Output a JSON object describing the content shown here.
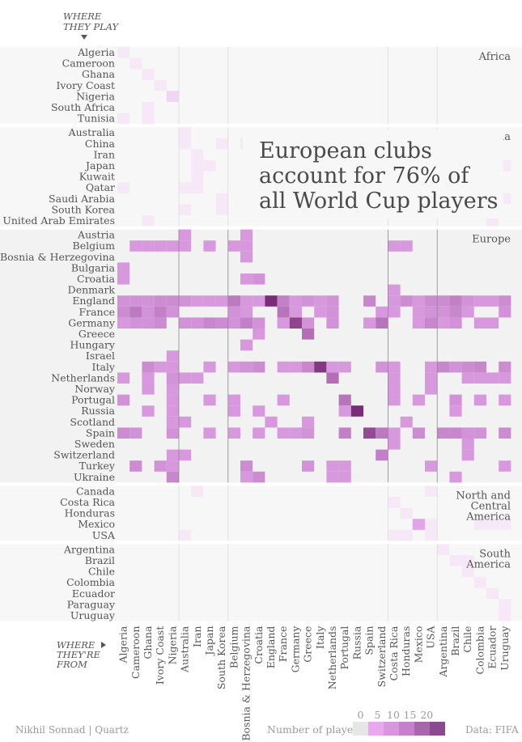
{
  "chart_data": {
    "type": "heatmap",
    "title": "European clubs account for 76% of all World Cup players",
    "y_axis_heading": [
      "WHERE",
      "THEY PLAY"
    ],
    "x_axis_heading": [
      "WHERE",
      "THEY'RE",
      "FROM"
    ],
    "color_low": "#f6e6f8",
    "color_high": "#7a2c78",
    "background_color": "#f2f2f2",
    "club_groups": [
      {
        "name": "Africa",
        "label_lines": [
          "Africa"
        ],
        "countries": [
          "Algeria",
          "Cameroon",
          "Ghana",
          "Ivory Coast",
          "Nigeria",
          "South Africa",
          "Tunisia"
        ]
      },
      {
        "name": "Asia",
        "label_lines": [
          "Asia"
        ],
        "countries": [
          "Australia",
          "China",
          "Iran",
          "Japan",
          "Kuwait",
          "Qatar",
          "Saudi Arabia",
          "South Korea",
          "United Arab Emirates"
        ]
      },
      {
        "name": "Europe",
        "label_lines": [
          "Europe"
        ],
        "countries": [
          "Austria",
          "Belgium",
          "Bosnia & Herzegovina",
          "Bulgaria",
          "Croatia",
          "Denmark",
          "England",
          "France",
          "Germany",
          "Greece",
          "Hungary",
          "Israel",
          "Italy",
          "Netherlands",
          "Norway",
          "Portugal",
          "Russia",
          "Scotland",
          "Spain",
          "Sweden",
          "Switzerland",
          "Turkey",
          "Ukraine"
        ]
      },
      {
        "name": "North and Central America",
        "label_lines": [
          "North and",
          "Central",
          "America"
        ],
        "countries": [
          "Canada",
          "Costa Rica",
          "Honduras",
          "Mexico",
          "USA"
        ]
      },
      {
        "name": "South America",
        "label_lines": [
          "South",
          "America"
        ],
        "countries": [
          "Argentina",
          "Brazil",
          "Chile",
          "Colombia",
          "Ecuador",
          "Paraguay",
          "Uruguay"
        ]
      }
    ],
    "team_groups": [
      [
        "Algeria",
        "Cameroon",
        "Ghana",
        "Ivory Coast",
        "Nigeria"
      ],
      [
        "Australia",
        "Iran",
        "Japan",
        "South Korea"
      ],
      [
        "Belgium",
        "Bosnia & Herzegovina",
        "Croatia",
        "England",
        "France",
        "Germany",
        "Greece",
        "Italy",
        "Netherlands",
        "Portugal",
        "Russia",
        "Spain",
        "Switzerland"
      ],
      [
        "Costa Rica",
        "Honduras",
        "Mexico",
        "USA"
      ],
      [
        "Argentina",
        "Brazil",
        "Chile",
        "Colombia",
        "Ecuador",
        "Uruguay"
      ]
    ],
    "cells": [
      [
        "Algeria",
        "Algeria",
        1
      ],
      [
        "Cameroon",
        "Cameroon",
        1
      ],
      [
        "Ghana",
        "Ghana",
        1
      ],
      [
        "Ivory Coast",
        "Ivory Coast",
        1
      ],
      [
        "Nigeria",
        "Nigeria",
        2
      ],
      [
        "South Africa",
        "Ghana",
        1
      ],
      [
        "Tunisia",
        "Algeria",
        1
      ],
      [
        "Tunisia",
        "Ghana",
        1
      ],
      [
        "Australia",
        "Australia",
        1
      ],
      [
        "China",
        "Australia",
        1
      ],
      [
        "China",
        "South Korea",
        1
      ],
      [
        "China",
        "Bosnia & Herzegovina",
        1
      ],
      [
        "Iran",
        "Iran",
        1
      ],
      [
        "Japan",
        "Iran",
        1
      ],
      [
        "Japan",
        "Japan",
        1
      ],
      [
        "Japan",
        "Uruguay",
        1
      ],
      [
        "Kuwait",
        "Iran",
        1
      ],
      [
        "Qatar",
        "Algeria",
        1
      ],
      [
        "Qatar",
        "Australia",
        1
      ],
      [
        "Qatar",
        "Iran",
        1
      ],
      [
        "Saudi Arabia",
        "South Korea",
        1
      ],
      [
        "Saudi Arabia",
        "Uruguay",
        1
      ],
      [
        "South Korea",
        "Australia",
        1
      ],
      [
        "South Korea",
        "South Korea",
        1
      ],
      [
        "United Arab Emirates",
        "Ghana",
        1
      ],
      [
        "United Arab Emirates",
        "Ecuador",
        1
      ],
      [
        "Austria",
        "Australia",
        5
      ],
      [
        "Austria",
        "Bosnia & Herzegovina",
        5
      ],
      [
        "Belgium",
        "Cameroon",
        5
      ],
      [
        "Belgium",
        "Ghana",
        5
      ],
      [
        "Belgium",
        "Ivory Coast",
        5
      ],
      [
        "Belgium",
        "Nigeria",
        5
      ],
      [
        "Belgium",
        "Australia",
        5
      ],
      [
        "Belgium",
        "Japan",
        5
      ],
      [
        "Belgium",
        "Belgium",
        5
      ],
      [
        "Belgium",
        "Bosnia & Herzegovina",
        5
      ],
      [
        "Belgium",
        "Costa Rica",
        5
      ],
      [
        "Belgium",
        "Honduras",
        5
      ],
      [
        "Bosnia & Herzegovina",
        "Bosnia & Herzegovina",
        5
      ],
      [
        "Bulgaria",
        "Algeria",
        5
      ],
      [
        "Croatia",
        "Algeria",
        5
      ],
      [
        "Croatia",
        "Bosnia & Herzegovina",
        5
      ],
      [
        "Croatia",
        "Croatia",
        6
      ],
      [
        "Denmark",
        "Costa Rica",
        5
      ],
      [
        "England",
        "Algeria",
        6
      ],
      [
        "England",
        "Cameroon",
        6
      ],
      [
        "England",
        "Ghana",
        6
      ],
      [
        "England",
        "Ivory Coast",
        7
      ],
      [
        "England",
        "Nigeria",
        7
      ],
      [
        "England",
        "Australia",
        6
      ],
      [
        "England",
        "Iran",
        5
      ],
      [
        "England",
        "Japan",
        5
      ],
      [
        "England",
        "South Korea",
        5
      ],
      [
        "England",
        "Belgium",
        10
      ],
      [
        "England",
        "Bosnia & Herzegovina",
        5
      ],
      [
        "England",
        "Croatia",
        5
      ],
      [
        "England",
        "England",
        23
      ],
      [
        "England",
        "France",
        9
      ],
      [
        "England",
        "Germany",
        5
      ],
      [
        "England",
        "Greece",
        6
      ],
      [
        "England",
        "Italy",
        5
      ],
      [
        "England",
        "Netherlands",
        6
      ],
      [
        "England",
        "Spain",
        8
      ],
      [
        "England",
        "Costa Rica",
        5
      ],
      [
        "England",
        "Honduras",
        7
      ],
      [
        "England",
        "Mexico",
        5
      ],
      [
        "England",
        "USA",
        7
      ],
      [
        "England",
        "Argentina",
        7
      ],
      [
        "England",
        "Brazil",
        9
      ],
      [
        "England",
        "Chile",
        6
      ],
      [
        "England",
        "Colombia",
        5
      ],
      [
        "England",
        "Ecuador",
        5
      ],
      [
        "England",
        "Uruguay",
        7
      ],
      [
        "France",
        "Algeria",
        7
      ],
      [
        "France",
        "Cameroon",
        10
      ],
      [
        "France",
        "Ghana",
        6
      ],
      [
        "France",
        "Ivory Coast",
        9
      ],
      [
        "France",
        "Nigeria",
        6
      ],
      [
        "France",
        "Belgium",
        6
      ],
      [
        "France",
        "Bosnia & Herzegovina",
        5
      ],
      [
        "France",
        "France",
        11
      ],
      [
        "France",
        "Germany",
        5
      ],
      [
        "France",
        "Italy",
        5
      ],
      [
        "France",
        "Netherlands",
        6
      ],
      [
        "France",
        "Switzerland",
        5
      ],
      [
        "France",
        "Costa Rica",
        5
      ],
      [
        "France",
        "Mexico",
        5
      ],
      [
        "France",
        "USA",
        6
      ],
      [
        "France",
        "Argentina",
        6
      ],
      [
        "France",
        "Brazil",
        8
      ],
      [
        "France",
        "Chile",
        5
      ],
      [
        "France",
        "Uruguay",
        6
      ],
      [
        "Germany",
        "Algeria",
        5
      ],
      [
        "Germany",
        "Cameroon",
        6
      ],
      [
        "Germany",
        "Ghana",
        6
      ],
      [
        "Germany",
        "Ivory Coast",
        7
      ],
      [
        "Germany",
        "Australia",
        6
      ],
      [
        "Germany",
        "Iran",
        6
      ],
      [
        "Germany",
        "Japan",
        8
      ],
      [
        "Germany",
        "South Korea",
        7
      ],
      [
        "Germany",
        "Belgium",
        6
      ],
      [
        "Germany",
        "Bosnia & Herzegovina",
        9
      ],
      [
        "Germany",
        "Croatia",
        6
      ],
      [
        "Germany",
        "France",
        5
      ],
      [
        "Germany",
        "Germany",
        19
      ],
      [
        "Germany",
        "Greece",
        6
      ],
      [
        "Germany",
        "Netherlands",
        6
      ],
      [
        "Germany",
        "Spain",
        5
      ],
      [
        "Germany",
        "Switzerland",
        11
      ],
      [
        "Germany",
        "Mexico",
        5
      ],
      [
        "Germany",
        "USA",
        8
      ],
      [
        "Germany",
        "Argentina",
        5
      ],
      [
        "Germany",
        "Brazil",
        6
      ],
      [
        "Germany",
        "Colombia",
        5
      ],
      [
        "Germany",
        "Ecuador",
        5
      ],
      [
        "Greece",
        "Croatia",
        5
      ],
      [
        "Greece",
        "Greece",
        12
      ],
      [
        "Hungary",
        "Bosnia & Herzegovina",
        5
      ],
      [
        "Israel",
        "Nigeria",
        5
      ],
      [
        "Italy",
        "Ghana",
        7
      ],
      [
        "Italy",
        "Ivory Coast",
        5
      ],
      [
        "Italy",
        "Nigeria",
        5
      ],
      [
        "Italy",
        "Japan",
        5
      ],
      [
        "Italy",
        "Belgium",
        5
      ],
      [
        "Italy",
        "Bosnia & Herzegovina",
        6
      ],
      [
        "Italy",
        "Croatia",
        7
      ],
      [
        "Italy",
        "France",
        5
      ],
      [
        "Italy",
        "Germany",
        5
      ],
      [
        "Italy",
        "Greece",
        8
      ],
      [
        "Italy",
        "Italy",
        21
      ],
      [
        "Italy",
        "Netherlands",
        5
      ],
      [
        "Italy",
        "Portugal",
        5
      ],
      [
        "Italy",
        "Switzerland",
        6
      ],
      [
        "Italy",
        "Costa Rica",
        5
      ],
      [
        "Italy",
        "USA",
        5
      ],
      [
        "Italy",
        "Argentina",
        8
      ],
      [
        "Italy",
        "Brazil",
        6
      ],
      [
        "Italy",
        "Chile",
        7
      ],
      [
        "Italy",
        "Colombia",
        8
      ],
      [
        "Italy",
        "Uruguay",
        7
      ],
      [
        "Netherlands",
        "Algeria",
        5
      ],
      [
        "Netherlands",
        "Ghana",
        5
      ],
      [
        "Netherlands",
        "Nigeria",
        6
      ],
      [
        "Netherlands",
        "Australia",
        5
      ],
      [
        "Netherlands",
        "Iran",
        5
      ],
      [
        "Netherlands",
        "Netherlands",
        12
      ],
      [
        "Netherlands",
        "Costa Rica",
        5
      ],
      [
        "Netherlands",
        "USA",
        5
      ],
      [
        "Netherlands",
        "Chile",
        5
      ],
      [
        "Netherlands",
        "Colombia",
        5
      ],
      [
        "Netherlands",
        "Ecuador",
        5
      ],
      [
        "Netherlands",
        "Uruguay",
        5
      ],
      [
        "Norway",
        "Ghana",
        5
      ],
      [
        "Norway",
        "Nigeria",
        5
      ],
      [
        "Norway",
        "Costa Rica",
        5
      ],
      [
        "Norway",
        "USA",
        5
      ],
      [
        "Portugal",
        "Algeria",
        6
      ],
      [
        "Portugal",
        "Nigeria",
        5
      ],
      [
        "Portugal",
        "Japan",
        5
      ],
      [
        "Portugal",
        "Belgium",
        5
      ],
      [
        "Portugal",
        "France",
        5
      ],
      [
        "Portugal",
        "Portugal",
        11
      ],
      [
        "Portugal",
        "Costa Rica",
        5
      ],
      [
        "Portugal",
        "Mexico",
        5
      ],
      [
        "Portugal",
        "Brazil",
        6
      ],
      [
        "Portugal",
        "Colombia",
        5
      ],
      [
        "Portugal",
        "Uruguay",
        5
      ],
      [
        "Russia",
        "Ghana",
        5
      ],
      [
        "Russia",
        "Nigeria",
        5
      ],
      [
        "Russia",
        "Belgium",
        5
      ],
      [
        "Russia",
        "Croatia",
        5
      ],
      [
        "Russia",
        "Portugal",
        5
      ],
      [
        "Russia",
        "Russia",
        23
      ],
      [
        "Russia",
        "Brazil",
        5
      ],
      [
        "Scotland",
        "Nigeria",
        5
      ],
      [
        "Scotland",
        "Australia",
        5
      ],
      [
        "Scotland",
        "England",
        5
      ],
      [
        "Scotland",
        "Greece",
        5
      ],
      [
        "Scotland",
        "Honduras",
        5
      ],
      [
        "Spain",
        "Algeria",
        7
      ],
      [
        "Spain",
        "Cameroon",
        6
      ],
      [
        "Spain",
        "Nigeria",
        6
      ],
      [
        "Spain",
        "Japan",
        5
      ],
      [
        "Spain",
        "Belgium",
        5
      ],
      [
        "Spain",
        "Croatia",
        5
      ],
      [
        "Spain",
        "France",
        5
      ],
      [
        "Spain",
        "Germany",
        5
      ],
      [
        "Spain",
        "Greece",
        6
      ],
      [
        "Spain",
        "Portugal",
        9
      ],
      [
        "Spain",
        "Spain",
        18
      ],
      [
        "Spain",
        "Switzerland",
        10
      ],
      [
        "Spain",
        "Costa Rica",
        5
      ],
      [
        "Spain",
        "Mexico",
        7
      ],
      [
        "Spain",
        "Argentina",
        8
      ],
      [
        "Spain",
        "Brazil",
        8
      ],
      [
        "Spain",
        "Chile",
        6
      ],
      [
        "Spain",
        "Colombia",
        6
      ],
      [
        "Spain",
        "Uruguay",
        7
      ],
      [
        "Sweden",
        "Costa Rica",
        5
      ],
      [
        "Sweden",
        "Chile",
        5
      ],
      [
        "Switzerland",
        "Nigeria",
        5
      ],
      [
        "Switzerland",
        "Australia",
        5
      ],
      [
        "Switzerland",
        "Switzerland",
        9
      ],
      [
        "Switzerland",
        "Chile",
        5
      ],
      [
        "Turkey",
        "Cameroon",
        7
      ],
      [
        "Turkey",
        "Ivory Coast",
        6
      ],
      [
        "Turkey",
        "Nigeria",
        5
      ],
      [
        "Turkey",
        "Bosnia & Herzegovina",
        7
      ],
      [
        "Turkey",
        "Greece",
        6
      ],
      [
        "Turkey",
        "Netherlands",
        5
      ],
      [
        "Turkey",
        "Portugal",
        5
      ],
      [
        "Turkey",
        "USA",
        5
      ],
      [
        "Turkey",
        "Uruguay",
        5
      ],
      [
        "Ukraine",
        "Nigeria",
        8
      ],
      [
        "Ukraine",
        "Bosnia & Herzegovina",
        5
      ],
      [
        "Ukraine",
        "Croatia",
        7
      ],
      [
        "Ukraine",
        "Netherlands",
        5
      ],
      [
        "Ukraine",
        "Portugal",
        5
      ],
      [
        "Ukraine",
        "Brazil",
        5
      ],
      [
        "Canada",
        "Iran",
        1
      ],
      [
        "Costa Rica",
        "Costa Rica",
        1
      ],
      [
        "Honduras",
        "Honduras",
        1
      ],
      [
        "Mexico",
        "Mexico",
        3
      ],
      [
        "Mexico",
        "USA",
        1
      ],
      [
        "Mexico",
        "Ecuador",
        1
      ],
      [
        "USA",
        "Australia",
        1
      ],
      [
        "USA",
        "Costa Rica",
        1
      ],
      [
        "USA",
        "Honduras",
        1
      ],
      [
        "USA",
        "USA",
        1
      ],
      [
        "Canada",
        "USA",
        1
      ],
      [
        "Mexico",
        "Colombia",
        1
      ],
      [
        "Mexico",
        "Uruguay",
        1
      ],
      [
        "Argentina",
        "Argentina",
        1
      ],
      [
        "Brazil",
        "Brazil",
        1
      ],
      [
        "Brazil",
        "Chile",
        1
      ],
      [
        "Chile",
        "Chile",
        1
      ],
      [
        "Colombia",
        "Colombia",
        1
      ],
      [
        "Ecuador",
        "Ecuador",
        1
      ],
      [
        "Paraguay",
        "Uruguay",
        1
      ],
      [
        "Uruguay",
        "Uruguay",
        1
      ]
    ],
    "legend": {
      "title": "Number of players",
      "ticks": [
        "0",
        "5",
        "10",
        "15",
        "20"
      ]
    }
  },
  "footer": {
    "credit": "Nikhil Sonnad | Quartz",
    "source": "Data: FIFA"
  }
}
